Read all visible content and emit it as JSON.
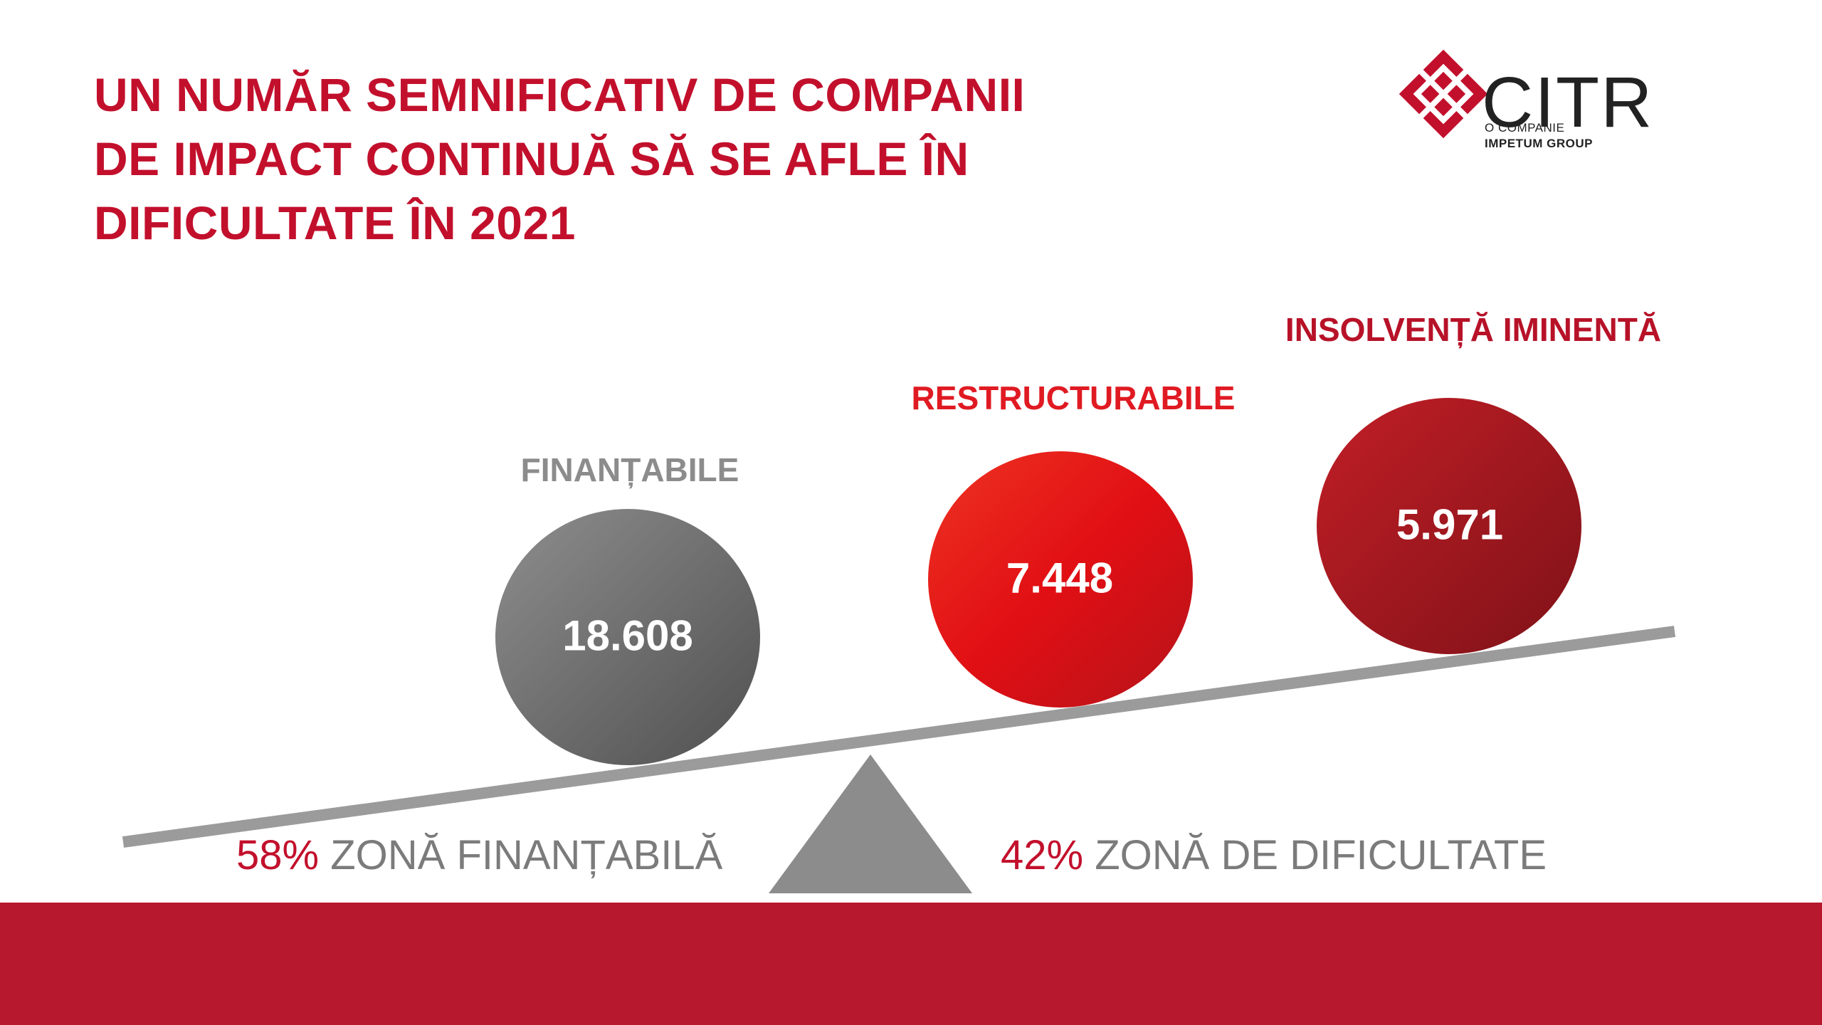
{
  "title": {
    "line1": "UN NUMĂR SEMNIFICATIV DE COMPANII",
    "line2": "DE IMPACT CONTINUĂ SĂ SE AFLE ÎN",
    "line3": "DIFICULTATE ÎN 2021"
  },
  "logo": {
    "name": "CITR",
    "subtitle_line1": "O COMPANIE",
    "subtitle_line2": "IMPETUM GROUP"
  },
  "categories": [
    {
      "label": "FINANȚABILE",
      "value": "18.608",
      "color": "#6f6f6f"
    },
    {
      "label": "RESTRUCTURABILE",
      "value": "7.448",
      "color": "#e10f14"
    },
    {
      "label": "INSOLVENȚĂ IMINENTĂ",
      "value": "5.971",
      "color": "#a3161f"
    }
  ],
  "zones": {
    "left": {
      "percent": "58%",
      "text": "ZONĂ FINANȚABILĂ"
    },
    "right": {
      "percent": "42%",
      "text": "ZONĂ DE DIFICULTATE"
    }
  },
  "colors": {
    "brand_red": "#c2102c",
    "footer": "#b7182d",
    "gray": "#8c8c8c"
  }
}
